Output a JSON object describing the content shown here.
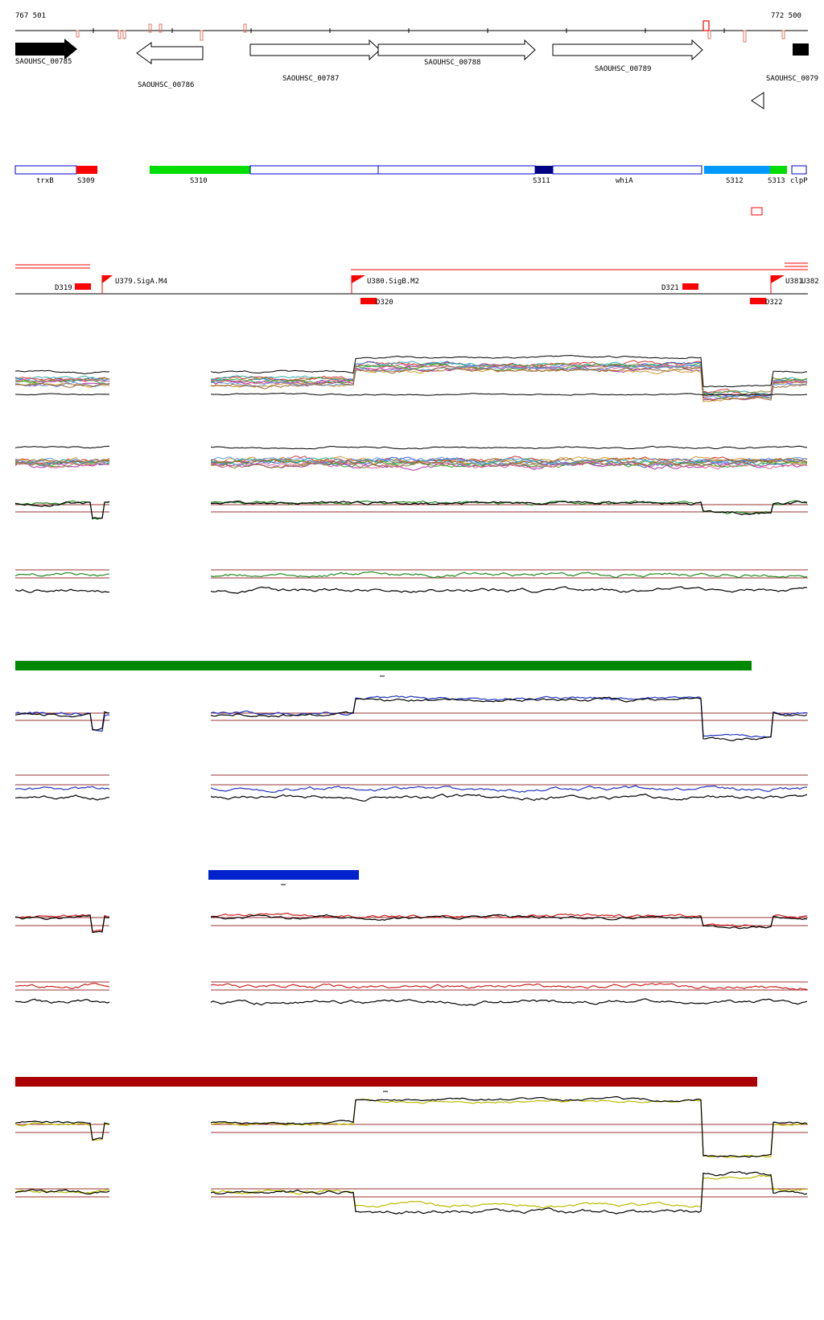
{
  "coords": {
    "start": "767 501",
    "end": "772 500"
  },
  "genes": [
    {
      "id": "SAOUHSC_00785",
      "strand": "+",
      "fill": true
    },
    {
      "id": "SAOUHSC_00786",
      "strand": "-",
      "fill": false
    },
    {
      "id": "SAOUHSC_00787",
      "strand": "+",
      "fill": false
    },
    {
      "id": "SAOUHSC_00788",
      "strand": "+",
      "fill": false
    },
    {
      "id": "SAOUHSC_00789",
      "strand": "+",
      "fill": false
    },
    {
      "id": "SAOUHSC_0079",
      "strand": "+",
      "fill": true
    }
  ],
  "segments": [
    {
      "label": "trxB",
      "color": "#ffffff"
    },
    {
      "label": "S309",
      "color": "#ff0000"
    },
    {
      "label": "S310",
      "color": "#00dd00"
    },
    {
      "label": "S311",
      "color": "#000080"
    },
    {
      "label": "whiA",
      "color": "#ffffff"
    },
    {
      "label": "S312",
      "color": "#0099ff"
    },
    {
      "label": "S313",
      "color": "#00dd00"
    },
    {
      "label": "clpP",
      "color": "#ffffff"
    }
  ],
  "features": [
    {
      "label": "D319",
      "kind": "down"
    },
    {
      "label": "U379.SigA.M4",
      "kind": "up"
    },
    {
      "label": "U380.SigB.M2",
      "kind": "up"
    },
    {
      "label": "D320",
      "kind": "down"
    },
    {
      "label": "D321",
      "kind": "down"
    },
    {
      "label": "D322",
      "kind": "down"
    },
    {
      "label": "U381",
      "kind": "up"
    },
    {
      "label": "U382",
      "kind": "up"
    }
  ],
  "condition_bars": [
    {
      "color": "#008800"
    },
    {
      "color": "#0022cc"
    },
    {
      "color": "#aa0000"
    }
  ],
  "colors": {
    "gene_outline": "#000000",
    "segment_outline": "#0000cc",
    "feature": "#ff0000",
    "threshold": "#993333",
    "green": "#228822",
    "blue": "#2233bb",
    "red": "#cc2222",
    "yellow": "#bbbb00",
    "black": "#000000"
  }
}
